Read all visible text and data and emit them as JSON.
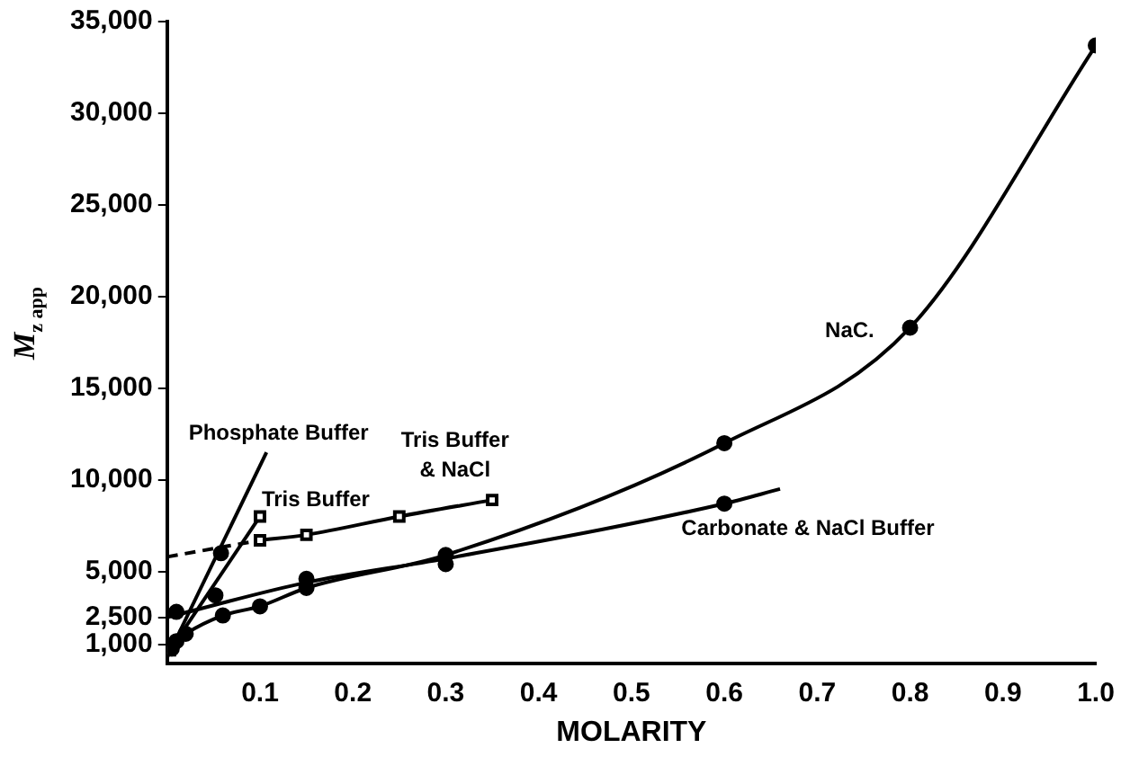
{
  "chart_data": {
    "type": "line",
    "xlabel": "MOLARITY",
    "ylabel": "M$_{z app}$",
    "xlim": [
      0,
      1
    ],
    "xticks": [
      0.1,
      0.2,
      0.3,
      0.4,
      0.5,
      0.6,
      0.7,
      0.8,
      0.9,
      {
        "value": 1,
        "label": "1.0"
      }
    ],
    "ylim": [
      0,
      35000
    ],
    "yticks": [
      {
        "value": 1000,
        "label": "1,000"
      },
      {
        "value": 2500,
        "label": "2,500"
      },
      {
        "value": 5000,
        "label": "5,000"
      },
      {
        "value": 10000,
        "label": "10,000"
      },
      {
        "value": 15000,
        "label": "15,000"
      },
      {
        "value": 20000,
        "label": "20,000"
      },
      {
        "value": 25000,
        "label": "25,000"
      },
      {
        "value": 30000,
        "label": "30,000"
      },
      {
        "value": 35000,
        "label": "35,000"
      }
    ],
    "grid": false,
    "legend": false,
    "series": [
      {
        "color": "#000000",
        "marker": "circle",
        "x": [
          0.005,
          0.01,
          0.02,
          0.06,
          0.1,
          0.15,
          0.3,
          0.6,
          0.8,
          1.0
        ],
        "values": [
          800,
          1200,
          1600,
          2600,
          3100,
          4100,
          5900,
          12000,
          18300,
          33700
        ]
      },
      {
        "color": "#000000",
        "marker": "none",
        "x": [
          0,
          0.15,
          0.3,
          0.6,
          0.66
        ],
        "values": [
          2500,
          4400,
          5700,
          8700,
          9500
        ]
      },
      {
        "type": "scatter",
        "color": "#000000",
        "marker": "circle",
        "x": [
          0.01,
          0.052,
          0.15,
          0.3,
          0.6
        ],
        "values": [
          2800,
          3700,
          4600,
          5400,
          8700
        ]
      },
      {
        "color": "#000000",
        "marker": "square",
        "x": [
          0.1,
          0.15,
          0.25,
          0.35
        ],
        "values": [
          6700,
          7000,
          8000,
          8900
        ]
      },
      {
        "color": "#000000",
        "marker": "none",
        "line_style": "dashed",
        "x": [
          0,
          0.1
        ],
        "values": [
          5800,
          6700
        ]
      },
      {
        "color": "#000000",
        "marker": "none",
        "x": [
          0,
          0.107
        ],
        "values": [
          300,
          11500
        ]
      },
      {
        "type": "scatter",
        "color": "#000000",
        "marker": "circle",
        "x": [
          0.058
        ],
        "values": [
          6000
        ]
      },
      {
        "color": "#000000",
        "marker": "square",
        "x": [
          0.003,
          0.1
        ],
        "values": [
          700,
          8000
        ]
      }
    ],
    "annotations": [
      "Phosphate Buffer",
      "Tris Buffer",
      "Tris Buffer",
      "& NaCl",
      "Carbonate & NaCl Buffer",
      "NaC."
    ]
  }
}
